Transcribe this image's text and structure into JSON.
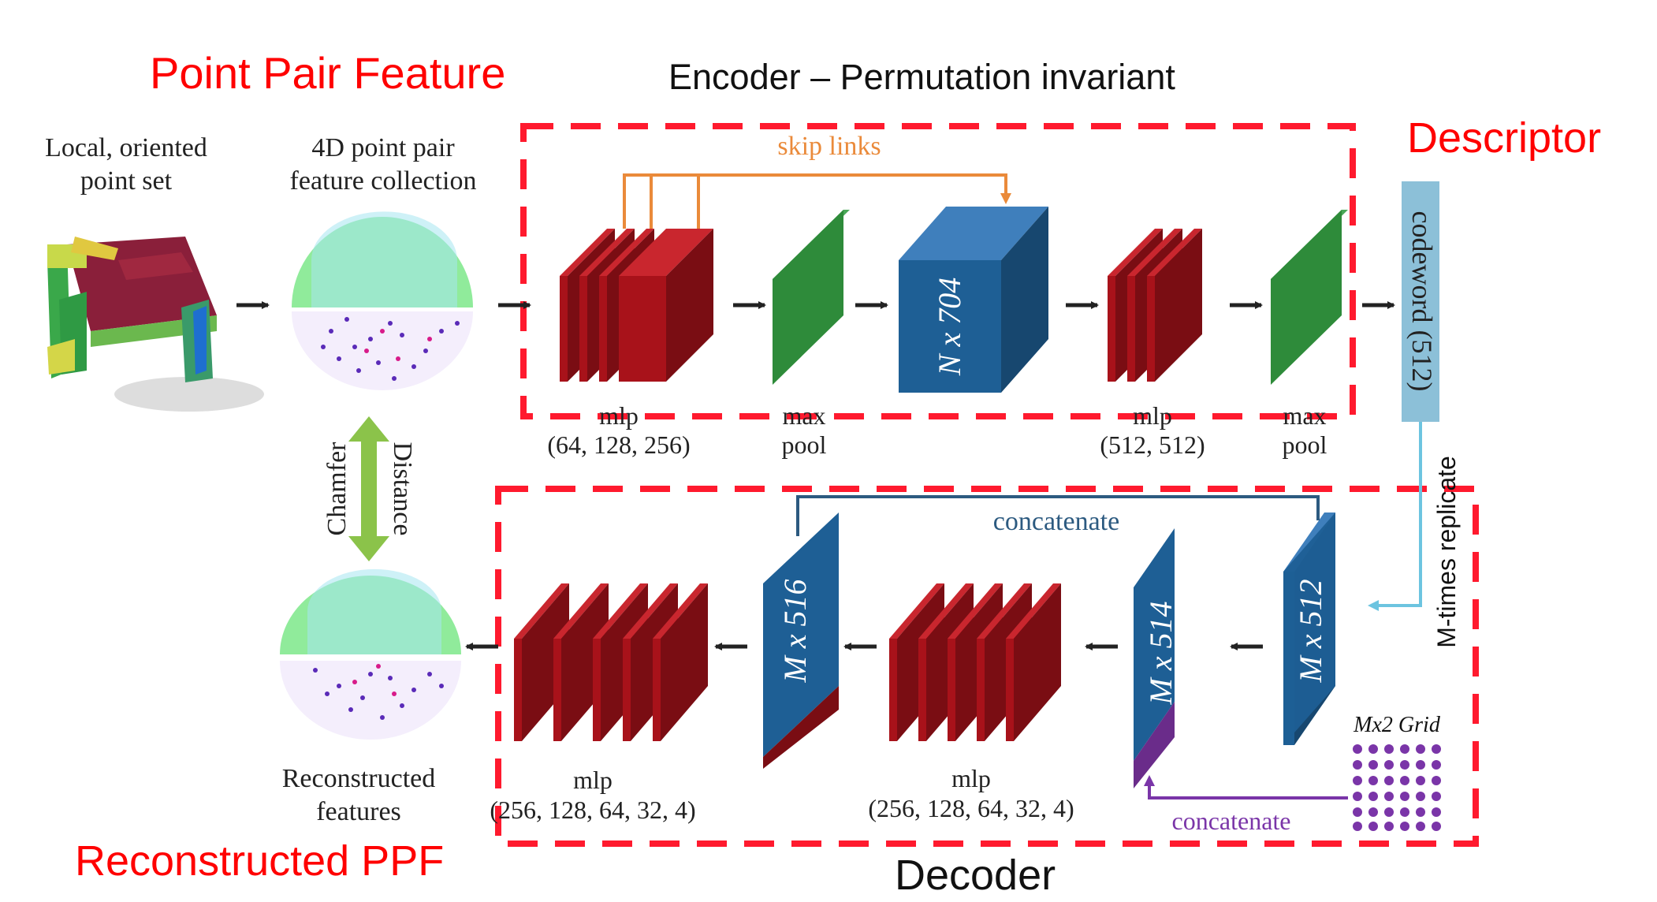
{
  "titles": {
    "ppf": "Point Pair Feature",
    "encoder": "Encoder – Permutation invariant",
    "descriptor": "Descriptor",
    "reconstructed_ppf": "Reconstructed PPF",
    "decoder": "Decoder"
  },
  "input": {
    "local_line1": "Local, oriented",
    "local_line2": "point set",
    "ppf_line1": "4D point pair",
    "ppf_line2": "feature collection",
    "recon_line1": "Reconstructed",
    "recon_line2": "features",
    "chamfer": "Chamfer",
    "distance": "Distance"
  },
  "encoder": {
    "skip_links": "skip links",
    "mlp1_label": "mlp",
    "mlp1_dims": "(64, 128, 256)",
    "maxpool1_line1": "max",
    "maxpool1_line2": "pool",
    "block_n704": "N x 704",
    "mlp2_label": "mlp",
    "mlp2_dims": "(512, 512)",
    "maxpool2_line1": "max",
    "maxpool2_line2": "pool",
    "codeword": "codeword (512)"
  },
  "decoder": {
    "replicate": "M-times replicate",
    "concatenate_top": "concatenate",
    "concatenate_bottom": "concatenate",
    "block_m512": "M x 512",
    "block_m514": "M x 514",
    "block_m516": "M x 516",
    "grid_label": "Mx2 Grid",
    "mlp1_label": "mlp",
    "mlp1_dims": "(256, 128, 64, 32, 4)",
    "mlp2_label": "mlp",
    "mlp2_dims": "(256, 128, 64, 32, 4)"
  },
  "colors": {
    "title_red": "#ff0000",
    "dashed_box": "#ff1a2e",
    "mlp_red": "#a8121a",
    "pool_green": "#2e8b3a",
    "block_blue": "#1e5f95",
    "codeword": "#8cc0d8",
    "skip_orange": "#ea8a3a",
    "concat_blue": "#2c5a80",
    "concat_purple": "#7a35a8",
    "replicate_cyan": "#6cc4e0",
    "chamfer_green": "#8bc34a"
  }
}
